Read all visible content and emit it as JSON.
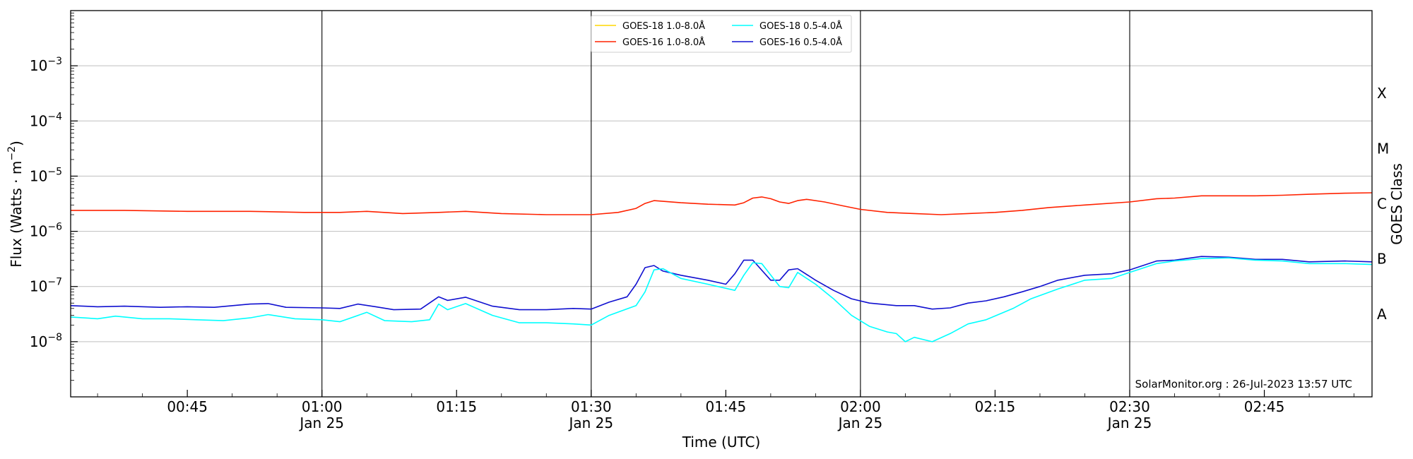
{
  "chart_data": {
    "type": "line",
    "xlabel": "Time (UTC)",
    "ylabel_main": "Flux (Watts · m",
    "ylabel_exp": "−2",
    "ylabel_close": ")",
    "y2label": "GOES Class",
    "yscale": "log",
    "xlim": [
      "00:32",
      "02:57"
    ],
    "ylim": [
      1e-09,
      0.01
    ],
    "yticks": [
      {
        "value": 0.001,
        "base": "10",
        "exp": "−3"
      },
      {
        "value": 0.0001,
        "base": "10",
        "exp": "−4"
      },
      {
        "value": 1e-05,
        "base": "10",
        "exp": "−5"
      },
      {
        "value": 1e-06,
        "base": "10",
        "exp": "−6"
      },
      {
        "value": 1e-07,
        "base": "10",
        "exp": "−7"
      },
      {
        "value": 1e-08,
        "base": "10",
        "exp": "−8"
      }
    ],
    "xticks": [
      {
        "time": "00:45",
        "label": "00:45",
        "sublabel": ""
      },
      {
        "time": "01:00",
        "label": "01:00",
        "sublabel": "Jan 25"
      },
      {
        "time": "01:15",
        "label": "01:15",
        "sublabel": ""
      },
      {
        "time": "01:30",
        "label": "01:30",
        "sublabel": "Jan 25"
      },
      {
        "time": "01:45",
        "label": "01:45",
        "sublabel": ""
      },
      {
        "time": "02:00",
        "label": "02:00",
        "sublabel": "Jan 25"
      },
      {
        "time": "02:15",
        "label": "02:15",
        "sublabel": ""
      },
      {
        "time": "02:30",
        "label": "02:30",
        "sublabel": "Jan 25"
      },
      {
        "time": "02:45",
        "label": "02:45",
        "sublabel": ""
      }
    ],
    "vlines": [
      "01:00",
      "01:30",
      "02:00",
      "02:30"
    ],
    "grid": "horizontal",
    "classes": [
      {
        "label": "A",
        "low": 1e-08,
        "high": 1e-07
      },
      {
        "label": "B",
        "low": 1e-07,
        "high": 1e-06
      },
      {
        "label": "C",
        "low": 1e-06,
        "high": 1e-05
      },
      {
        "label": "M",
        "low": 1e-05,
        "high": 0.0001
      },
      {
        "label": "X",
        "low": 0.0001,
        "high": 0.001
      }
    ],
    "legend_placement": "top-center",
    "legend": [
      {
        "name": "GOES-18 1.0-8.0Å",
        "color": "#ffd700"
      },
      {
        "name": "GOES-18 0.5-4.0Å",
        "color": "#00ffff"
      },
      {
        "name": "GOES-16 1.0-8.0Å",
        "color": "#ff2200"
      },
      {
        "name": "GOES-16 0.5-4.0Å",
        "color": "#1010d0"
      }
    ],
    "credit": "SolarMonitor.org : 26-Jul-2023 13:57 UTC",
    "series": [
      {
        "name": "GOES-16 1.0-8.0Å",
        "color": "#ff2200",
        "points": [
          [
            "00:32",
            2.4e-06
          ],
          [
            "00:38",
            2.4e-06
          ],
          [
            "00:45",
            2.3e-06
          ],
          [
            "00:52",
            2.3e-06
          ],
          [
            "00:58",
            2.2e-06
          ],
          [
            "01:02",
            2.2e-06
          ],
          [
            "01:05",
            2.3e-06
          ],
          [
            "01:09",
            2.1e-06
          ],
          [
            "01:13",
            2.2e-06
          ],
          [
            "01:16",
            2.3e-06
          ],
          [
            "01:20",
            2.1e-06
          ],
          [
            "01:25",
            2e-06
          ],
          [
            "01:30",
            2e-06
          ],
          [
            "01:33",
            2.2e-06
          ],
          [
            "01:35",
            2.6e-06
          ],
          [
            "01:36",
            3.2e-06
          ],
          [
            "01:37",
            3.6e-06
          ],
          [
            "01:40",
            3.3e-06
          ],
          [
            "01:43",
            3.1e-06
          ],
          [
            "01:46",
            3e-06
          ],
          [
            "01:47",
            3.3e-06
          ],
          [
            "01:48",
            4e-06
          ],
          [
            "01:49",
            4.2e-06
          ],
          [
            "01:50",
            3.9e-06
          ],
          [
            "01:51",
            3.4e-06
          ],
          [
            "01:52",
            3.2e-06
          ],
          [
            "01:53",
            3.6e-06
          ],
          [
            "01:54",
            3.8e-06
          ],
          [
            "01:56",
            3.4e-06
          ],
          [
            "01:58",
            2.9e-06
          ],
          [
            "02:00",
            2.5e-06
          ],
          [
            "02:03",
            2.2e-06
          ],
          [
            "02:06",
            2.1e-06
          ],
          [
            "02:09",
            2e-06
          ],
          [
            "02:12",
            2.1e-06
          ],
          [
            "02:15",
            2.2e-06
          ],
          [
            "02:18",
            2.4e-06
          ],
          [
            "02:21",
            2.7e-06
          ],
          [
            "02:25",
            3e-06
          ],
          [
            "02:30",
            3.4e-06
          ],
          [
            "02:33",
            3.9e-06
          ],
          [
            "02:35",
            4e-06
          ],
          [
            "02:38",
            4.4e-06
          ],
          [
            "02:44",
            4.4e-06
          ],
          [
            "02:47",
            4.5e-06
          ],
          [
            "02:50",
            4.7e-06
          ],
          [
            "02:54",
            4.9e-06
          ],
          [
            "02:57",
            5e-06
          ]
        ]
      },
      {
        "name": "GOES-16 0.5-4.0Å",
        "color": "#1010d0",
        "points": [
          [
            "00:32",
            4.5e-08
          ],
          [
            "00:35",
            4.3e-08
          ],
          [
            "00:38",
            4.4e-08
          ],
          [
            "00:42",
            4.2e-08
          ],
          [
            "00:45",
            4.3e-08
          ],
          [
            "00:48",
            4.2e-08
          ],
          [
            "00:52",
            4.8e-08
          ],
          [
            "00:54",
            4.9e-08
          ],
          [
            "00:56",
            4.2e-08
          ],
          [
            "01:00",
            4.1e-08
          ],
          [
            "01:02",
            4e-08
          ],
          [
            "01:04",
            4.8e-08
          ],
          [
            "01:06",
            4.3e-08
          ],
          [
            "01:08",
            3.8e-08
          ],
          [
            "01:11",
            3.9e-08
          ],
          [
            "01:13",
            6.5e-08
          ],
          [
            "01:14",
            5.6e-08
          ],
          [
            "01:16",
            6.4e-08
          ],
          [
            "01:19",
            4.4e-08
          ],
          [
            "01:22",
            3.8e-08
          ],
          [
            "01:25",
            3.8e-08
          ],
          [
            "01:28",
            4e-08
          ],
          [
            "01:30",
            3.9e-08
          ],
          [
            "01:32",
            5.2e-08
          ],
          [
            "01:34",
            6.5e-08
          ],
          [
            "01:35",
            1.1e-07
          ],
          [
            "01:36",
            2.2e-07
          ],
          [
            "01:37",
            2.4e-07
          ],
          [
            "01:38",
            1.9e-07
          ],
          [
            "01:40",
            1.6e-07
          ],
          [
            "01:43",
            1.3e-07
          ],
          [
            "01:45",
            1.1e-07
          ],
          [
            "01:46",
            1.7e-07
          ],
          [
            "01:47",
            3e-07
          ],
          [
            "01:48",
            3e-07
          ],
          [
            "01:50",
            1.3e-07
          ],
          [
            "01:51",
            1.3e-07
          ],
          [
            "01:52",
            2e-07
          ],
          [
            "01:53",
            2.1e-07
          ],
          [
            "01:55",
            1.3e-07
          ],
          [
            "01:57",
            8.5e-08
          ],
          [
            "01:59",
            6e-08
          ],
          [
            "02:01",
            5e-08
          ],
          [
            "02:04",
            4.5e-08
          ],
          [
            "02:06",
            4.5e-08
          ],
          [
            "02:08",
            3.9e-08
          ],
          [
            "02:10",
            4.1e-08
          ],
          [
            "02:12",
            5e-08
          ],
          [
            "02:14",
            5.5e-08
          ],
          [
            "02:16",
            6.5e-08
          ],
          [
            "02:18",
            8e-08
          ],
          [
            "02:20",
            1e-07
          ],
          [
            "02:22",
            1.3e-07
          ],
          [
            "02:25",
            1.6e-07
          ],
          [
            "02:28",
            1.7e-07
          ],
          [
            "02:30",
            2e-07
          ],
          [
            "02:33",
            2.9e-07
          ],
          [
            "02:35",
            3e-07
          ],
          [
            "02:38",
            3.5e-07
          ],
          [
            "02:41",
            3.4e-07
          ],
          [
            "02:44",
            3.1e-07
          ],
          [
            "02:47",
            3.1e-07
          ],
          [
            "02:50",
            2.8e-07
          ],
          [
            "02:54",
            2.9e-07
          ],
          [
            "02:57",
            2.8e-07
          ]
        ]
      },
      {
        "name": "GOES-18 0.5-4.0Å",
        "color": "#00ffff",
        "points": [
          [
            "00:32",
            2.8e-08
          ],
          [
            "00:35",
            2.6e-08
          ],
          [
            "00:37",
            2.9e-08
          ],
          [
            "00:40",
            2.6e-08
          ],
          [
            "00:43",
            2.6e-08
          ],
          [
            "00:46",
            2.5e-08
          ],
          [
            "00:49",
            2.4e-08
          ],
          [
            "00:52",
            2.7e-08
          ],
          [
            "00:54",
            3.1e-08
          ],
          [
            "00:57",
            2.6e-08
          ],
          [
            "01:00",
            2.5e-08
          ],
          [
            "01:02",
            2.3e-08
          ],
          [
            "01:05",
            3.4e-08
          ],
          [
            "01:07",
            2.4e-08
          ],
          [
            "01:10",
            2.3e-08
          ],
          [
            "01:12",
            2.5e-08
          ],
          [
            "01:13",
            4.8e-08
          ],
          [
            "01:14",
            3.8e-08
          ],
          [
            "01:16",
            4.9e-08
          ],
          [
            "01:19",
            3e-08
          ],
          [
            "01:22",
            2.2e-08
          ],
          [
            "01:25",
            2.2e-08
          ],
          [
            "01:28",
            2.1e-08
          ],
          [
            "01:30",
            2e-08
          ],
          [
            "01:32",
            3e-08
          ],
          [
            "01:35",
            4.5e-08
          ],
          [
            "01:36",
            8e-08
          ],
          [
            "01:37",
            2e-07
          ],
          [
            "01:38",
            2.1e-07
          ],
          [
            "01:40",
            1.4e-07
          ],
          [
            "01:43",
            1.1e-07
          ],
          [
            "01:46",
            8.5e-08
          ],
          [
            "01:47",
            1.6e-07
          ],
          [
            "01:48",
            2.7e-07
          ],
          [
            "01:49",
            2.6e-07
          ],
          [
            "01:51",
            1e-07
          ],
          [
            "01:52",
            9.5e-08
          ],
          [
            "01:53",
            1.8e-07
          ],
          [
            "01:55",
            1.1e-07
          ],
          [
            "01:57",
            6e-08
          ],
          [
            "01:59",
            3e-08
          ],
          [
            "02:01",
            1.9e-08
          ],
          [
            "02:03",
            1.5e-08
          ],
          [
            "02:04",
            1.4e-08
          ],
          [
            "02:05",
            1e-08
          ],
          [
            "02:06",
            1.2e-08
          ],
          [
            "02:08",
            1e-08
          ],
          [
            "02:10",
            1.4e-08
          ],
          [
            "02:12",
            2.1e-08
          ],
          [
            "02:14",
            2.5e-08
          ],
          [
            "02:17",
            4e-08
          ],
          [
            "02:19",
            6e-08
          ],
          [
            "02:22",
            9e-08
          ],
          [
            "02:25",
            1.3e-07
          ],
          [
            "02:28",
            1.4e-07
          ],
          [
            "02:30",
            1.8e-07
          ],
          [
            "02:33",
            2.6e-07
          ],
          [
            "02:35",
            2.9e-07
          ],
          [
            "02:38",
            3.2e-07
          ],
          [
            "02:41",
            3.3e-07
          ],
          [
            "02:44",
            3e-07
          ],
          [
            "02:47",
            2.9e-07
          ],
          [
            "02:50",
            2.6e-07
          ],
          [
            "02:54",
            2.6e-07
          ],
          [
            "02:57",
            2.5e-07
          ]
        ]
      }
    ]
  }
}
